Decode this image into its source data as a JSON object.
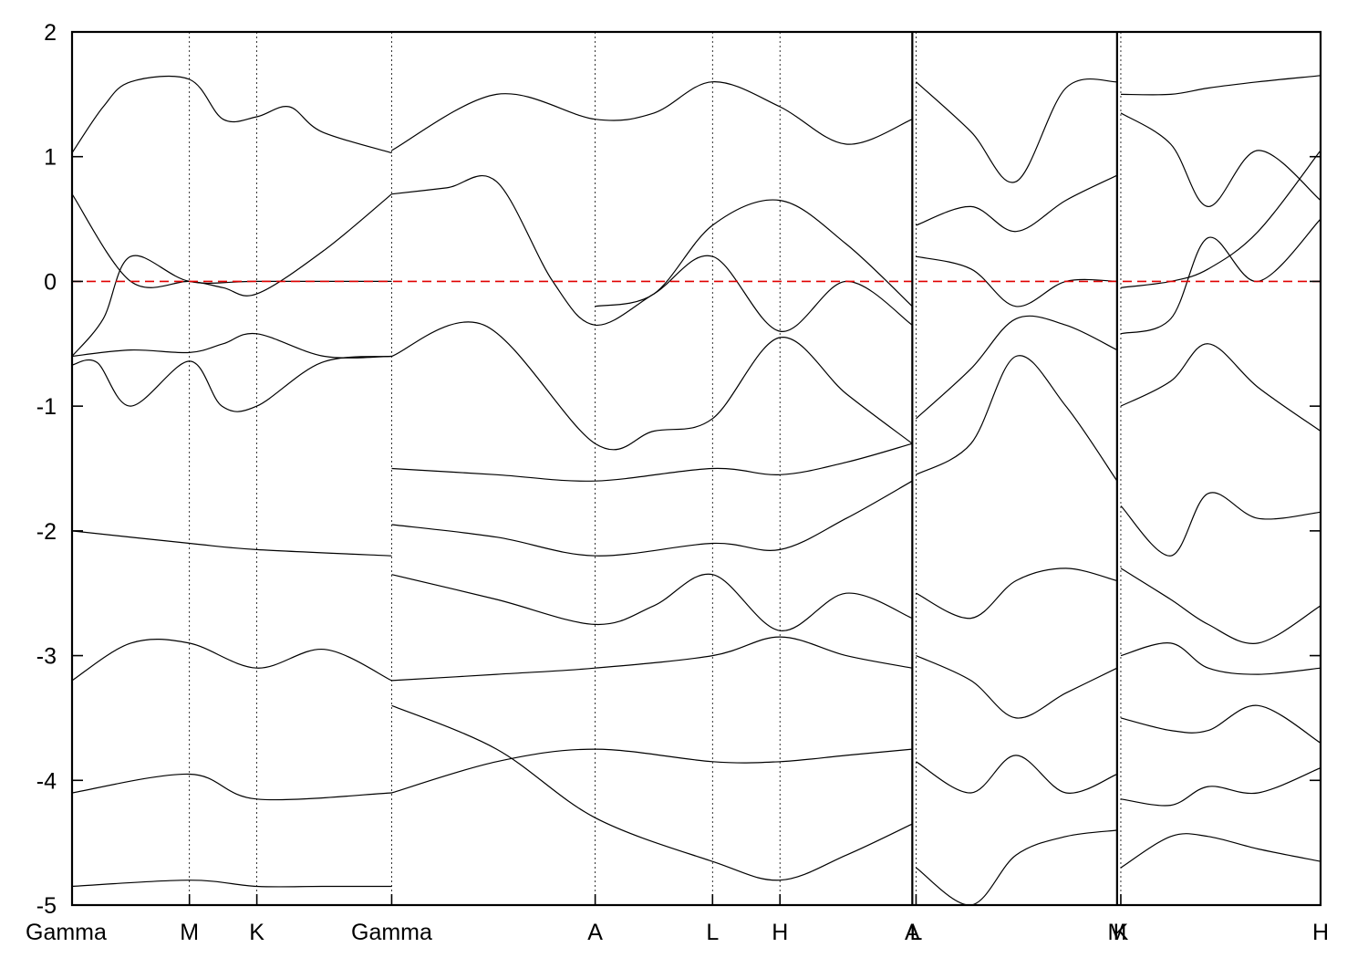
{
  "chart_data": {
    "type": "line",
    "title": "",
    "xlabel": "",
    "ylabel": "",
    "ylim": [
      -5,
      2
    ],
    "yticks": [
      -5,
      -4,
      -3,
      -2,
      -1,
      0,
      1,
      2
    ],
    "ytick_labels": [
      "-5",
      "-4",
      "-3",
      "-2",
      "-1",
      "0",
      "1",
      "2"
    ],
    "grid": false,
    "legend": "none",
    "fermi_level": {
      "y": 0,
      "color": "#e00000",
      "style": "dashed"
    },
    "x_range": [
      0,
      10.0
    ],
    "panel_breaks": [
      6.73,
      8.37
    ],
    "kpoints": [
      {
        "label": "Gamma",
        "x": 0.0
      },
      {
        "label": "M",
        "x": 0.94
      },
      {
        "label": "K",
        "x": 1.48
      },
      {
        "label": "Gamma",
        "x": 2.56
      },
      {
        "label": "A",
        "x": 4.19
      },
      {
        "label": "L",
        "x": 5.13
      },
      {
        "label": "H",
        "x": 5.67
      },
      {
        "label": "A",
        "x": 6.73
      },
      {
        "label": "L",
        "x": 6.76
      },
      {
        "label": "M",
        "x": 8.37
      },
      {
        "label": "K",
        "x": 8.4
      },
      {
        "label": "H",
        "x": 10.0
      }
    ],
    "series": [
      {
        "x": [
          0,
          0.47,
          0.94,
          1.21,
          1.48,
          2.02,
          2.56
        ],
        "values": [
          -0.6,
          -0.55,
          -0.57,
          -0.5,
          -0.42,
          -0.6,
          -0.6
        ]
      },
      {
        "x": [
          0,
          0.2,
          0.47,
          0.94,
          1.2,
          1.48,
          2.0,
          2.56
        ],
        "values": [
          -0.67,
          -0.65,
          -1.0,
          -0.64,
          -1.0,
          -1.0,
          -0.65,
          -0.6
        ]
      },
      {
        "x": [
          0,
          0.47,
          0.94,
          1.21,
          1.48,
          2.02,
          2.56
        ],
        "values": [
          0.7,
          0.0,
          0.0,
          -0.05,
          -0.1,
          0.25,
          0.7
        ]
      },
      {
        "x": [
          0,
          0.25,
          0.47,
          0.94,
          1.48,
          2.56
        ],
        "values": [
          -0.6,
          -0.3,
          0.2,
          0.0,
          0.0,
          0.0
        ]
      },
      {
        "x": [
          0,
          0.25,
          0.47,
          0.94,
          1.21,
          1.48,
          1.74,
          2.0,
          2.56
        ],
        "values": [
          1.03,
          1.4,
          1.6,
          1.62,
          1.3,
          1.32,
          1.4,
          1.2,
          1.03
        ]
      },
      {
        "x": [
          0,
          0.94,
          1.48,
          2.56
        ],
        "values": [
          -2.0,
          -2.1,
          -2.15,
          -2.2
        ]
      },
      {
        "x": [
          0,
          0.47,
          0.94,
          1.48,
          2.02,
          2.56
        ],
        "values": [
          -3.2,
          -2.9,
          -2.9,
          -3.1,
          -2.95,
          -3.2
        ]
      },
      {
        "x": [
          0,
          0.94,
          1.48,
          2.56
        ],
        "values": [
          -4.1,
          -3.95,
          -4.15,
          -4.1
        ]
      },
      {
        "x": [
          0,
          0.94,
          1.48,
          2.0,
          2.56
        ],
        "values": [
          -4.85,
          -4.8,
          -4.85,
          -4.85,
          -4.85
        ]
      },
      {
        "x": [
          2.56,
          3.0,
          3.4,
          3.85,
          4.19,
          4.66,
          5.13,
          5.67,
          6.2,
          6.73
        ],
        "values": [
          0.7,
          0.75,
          0.8,
          0.0,
          -0.35,
          -0.1,
          0.2,
          -0.4,
          0.0,
          -0.35
        ]
      },
      {
        "x": [
          2.56,
          3.3,
          4.19,
          4.66,
          5.13,
          5.67,
          6.2,
          6.73
        ],
        "values": [
          -0.6,
          -0.35,
          -1.3,
          -1.2,
          -1.1,
          -0.45,
          -0.9,
          -1.3
        ]
      },
      {
        "x": [
          2.56,
          3.4,
          4.19,
          4.66,
          5.13,
          5.67,
          6.2,
          6.73
        ],
        "values": [
          1.05,
          1.5,
          1.3,
          1.35,
          1.6,
          1.4,
          1.1,
          1.3
        ]
      },
      {
        "x": [
          4.19,
          4.66,
          5.13,
          5.67,
          6.2,
          6.73
        ],
        "values": [
          -0.2,
          -0.1,
          0.45,
          0.65,
          0.3,
          -0.2
        ]
      },
      {
        "x": [
          2.56,
          3.4,
          4.19,
          4.66,
          5.13,
          5.67,
          6.2,
          6.73
        ],
        "values": [
          -2.35,
          -2.55,
          -2.75,
          -2.6,
          -2.35,
          -2.8,
          -2.5,
          -2.7
        ]
      },
      {
        "x": [
          2.56,
          3.4,
          4.19,
          5.13,
          5.67,
          6.2,
          6.73
        ],
        "values": [
          -3.2,
          -3.15,
          -3.1,
          -3.0,
          -2.85,
          -3.0,
          -3.1
        ]
      },
      {
        "x": [
          2.56,
          3.4,
          4.19,
          5.13,
          5.67,
          6.2,
          6.73
        ],
        "values": [
          -4.1,
          -3.85,
          -3.75,
          -3.85,
          -3.85,
          -3.8,
          -3.75
        ]
      },
      {
        "x": [
          2.56,
          3.4,
          4.19,
          5.13,
          5.67,
          6.2,
          6.73
        ],
        "values": [
          -1.5,
          -1.55,
          -1.6,
          -1.5,
          -1.55,
          -1.45,
          -1.3
        ]
      },
      {
        "x": [
          2.56,
          3.4,
          4.19,
          5.13,
          5.67,
          6.2,
          6.73
        ],
        "values": [
          -1.95,
          -2.05,
          -2.2,
          -2.1,
          -2.15,
          -1.9,
          -1.6
        ]
      },
      {
        "x": [
          2.56,
          3.4,
          4.19,
          5.13,
          5.67,
          6.2,
          6.73
        ],
        "values": [
          -3.4,
          -3.75,
          -4.3,
          -4.65,
          -4.8,
          -4.6,
          -4.35
        ]
      },
      {
        "x": [
          6.76,
          7.2,
          7.56,
          7.96,
          8.37
        ],
        "values": [
          -1.1,
          -0.7,
          -0.3,
          -0.35,
          -0.55
        ]
      },
      {
        "x": [
          6.76,
          7.2,
          7.56,
          7.96,
          8.37
        ],
        "values": [
          1.6,
          1.2,
          0.8,
          1.55,
          1.6
        ]
      },
      {
        "x": [
          6.76,
          7.2,
          7.56,
          7.96,
          8.37
        ],
        "values": [
          0.2,
          0.1,
          -0.2,
          0.0,
          0.0
        ]
      },
      {
        "x": [
          6.76,
          7.2,
          7.56,
          7.96,
          8.37
        ],
        "values": [
          0.45,
          0.6,
          0.4,
          0.65,
          0.85
        ]
      },
      {
        "x": [
          6.76,
          7.2,
          7.56,
          7.96,
          8.37
        ],
        "values": [
          -1.55,
          -1.3,
          -0.6,
          -1.0,
          -1.6
        ]
      },
      {
        "x": [
          6.76,
          7.2,
          7.56,
          7.96,
          8.37
        ],
        "values": [
          -2.5,
          -2.7,
          -2.4,
          -2.3,
          -2.4
        ]
      },
      {
        "x": [
          6.76,
          7.2,
          7.56,
          7.96,
          8.37
        ],
        "values": [
          -3.0,
          -3.2,
          -3.5,
          -3.3,
          -3.1
        ]
      },
      {
        "x": [
          6.76,
          7.2,
          7.56,
          7.96,
          8.37
        ],
        "values": [
          -3.85,
          -4.1,
          -3.8,
          -4.1,
          -3.95
        ]
      },
      {
        "x": [
          6.76,
          7.2,
          7.56,
          7.96,
          8.37
        ],
        "values": [
          -4.7,
          -5.0,
          -4.6,
          -4.45,
          -4.4
        ]
      },
      {
        "x": [
          8.4,
          8.8,
          9.1,
          9.5,
          10.0
        ],
        "values": [
          -0.42,
          -0.3,
          0.35,
          0.0,
          0.5
        ]
      },
      {
        "x": [
          8.4,
          8.8,
          9.1,
          9.5,
          10.0
        ],
        "values": [
          -0.05,
          0.0,
          0.1,
          0.4,
          1.05
        ]
      },
      {
        "x": [
          8.4,
          8.8,
          9.1,
          9.5,
          10.0
        ],
        "values": [
          1.5,
          1.5,
          1.55,
          1.6,
          1.65
        ]
      },
      {
        "x": [
          8.4,
          8.8,
          9.1,
          9.5,
          10.0
        ],
        "values": [
          1.35,
          1.1,
          0.6,
          1.05,
          0.65
        ]
      },
      {
        "x": [
          8.4,
          8.8,
          9.1,
          9.5,
          10.0
        ],
        "values": [
          -1.0,
          -0.8,
          -0.5,
          -0.85,
          -1.2
        ]
      },
      {
        "x": [
          8.4,
          8.8,
          9.1,
          9.5,
          10.0
        ],
        "values": [
          -1.8,
          -2.2,
          -1.7,
          -1.9,
          -1.85
        ]
      },
      {
        "x": [
          8.4,
          8.8,
          9.1,
          9.5,
          10.0
        ],
        "values": [
          -2.3,
          -2.55,
          -2.75,
          -2.9,
          -2.6
        ]
      },
      {
        "x": [
          8.4,
          8.8,
          9.1,
          9.5,
          10.0
        ],
        "values": [
          -3.0,
          -2.9,
          -3.1,
          -3.15,
          -3.1
        ]
      },
      {
        "x": [
          8.4,
          8.8,
          9.1,
          9.5,
          10.0
        ],
        "values": [
          -3.5,
          -3.6,
          -3.6,
          -3.4,
          -3.7
        ]
      },
      {
        "x": [
          8.4,
          8.8,
          9.1,
          9.5,
          10.0
        ],
        "values": [
          -4.15,
          -4.2,
          -4.05,
          -4.1,
          -3.9
        ]
      },
      {
        "x": [
          8.4,
          8.8,
          9.1,
          9.5,
          10.0
        ],
        "values": [
          -4.7,
          -4.45,
          -4.45,
          -4.55,
          -4.65
        ]
      }
    ]
  }
}
